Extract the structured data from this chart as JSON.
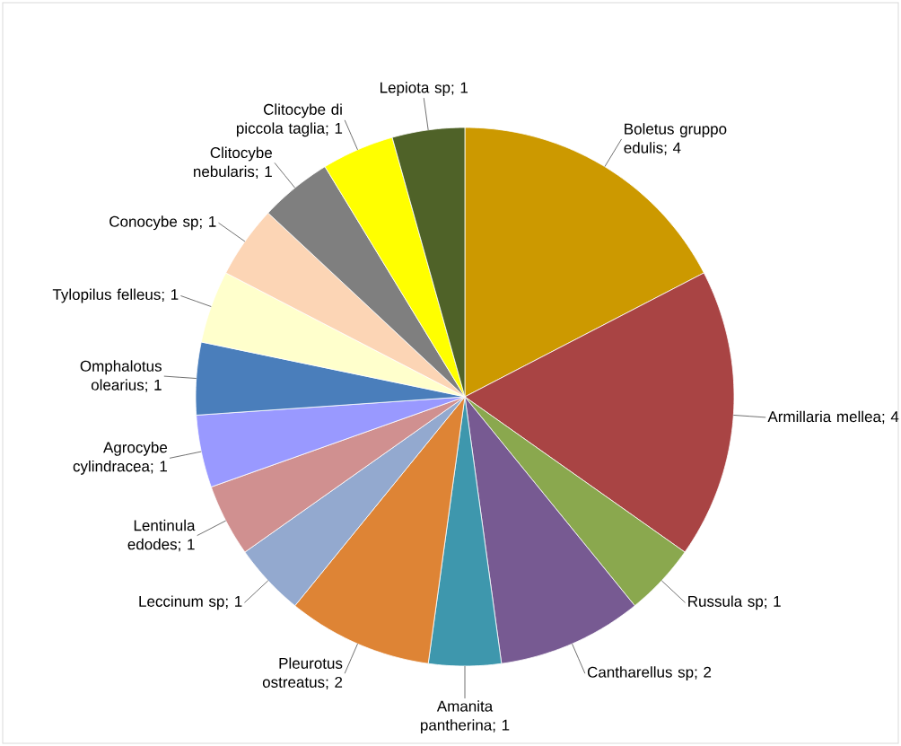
{
  "chart_data": {
    "type": "pie",
    "categories": [
      "Boletus gruppo edulis; 4",
      "Armillaria mellea; 4",
      "Russula sp; 1",
      "Cantharellus sp; 2",
      "Amanita pantherina; 1",
      "Pleurotus ostreatus; 2",
      "Leccinum sp; 1",
      "Lentinula edodes; 1",
      "Agrocybe cylindracea; 1",
      "Omphalotus olearius; 1",
      "Tylopilus felleus; 1",
      "Conocybe sp; 1",
      "Clitocybe nebularis; 1",
      "Clitocybe di piccola taglia; 1",
      "Lepiota sp; 1"
    ],
    "values": [
      4,
      4,
      1,
      2,
      1,
      2,
      1,
      1,
      1,
      1,
      1,
      1,
      1,
      1,
      1
    ],
    "colors": [
      "#cc9900",
      "#a94444",
      "#8aa84e",
      "#775a92",
      "#3e97ad",
      "#de8435",
      "#93a9cf",
      "#d09090",
      "#9999ff",
      "#4a7ebb",
      "#ffffcc",
      "#fcd5b5",
      "#7f7f7f",
      "#ffff00",
      "#4f6228"
    ]
  }
}
